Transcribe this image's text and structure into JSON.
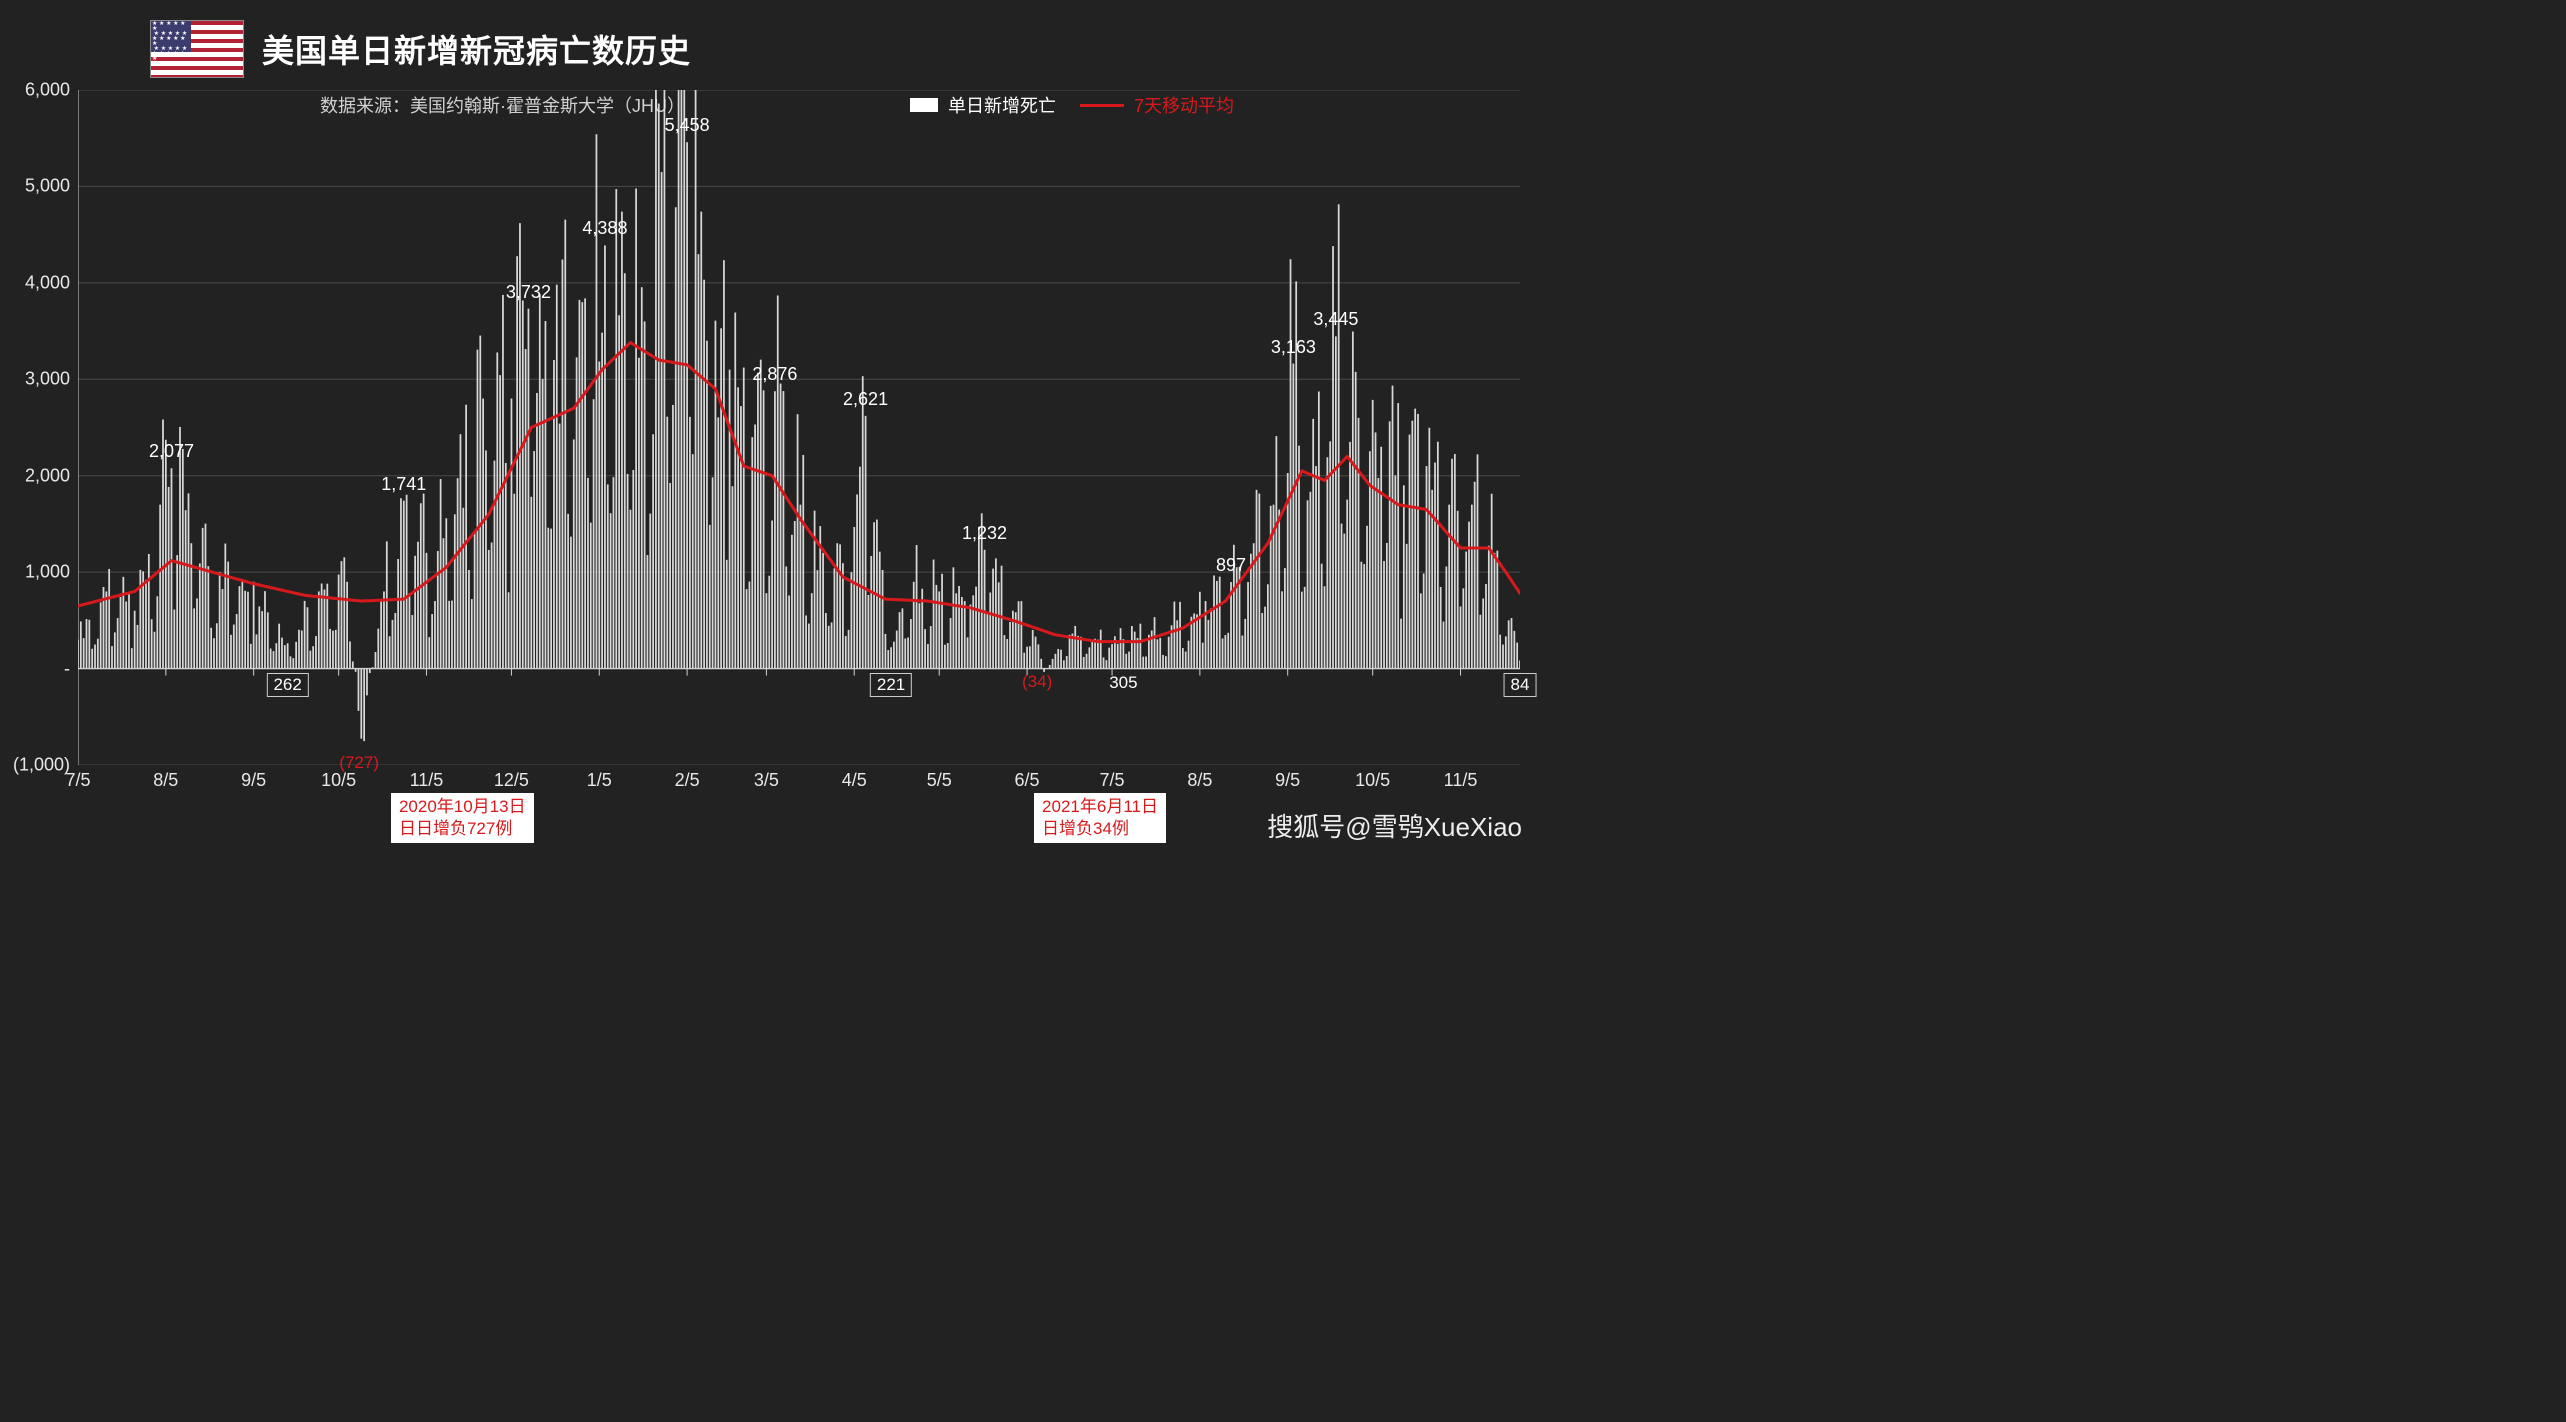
{
  "chart": {
    "type": "bar+line",
    "title": "美国单日新增新冠病亡数历史",
    "source_label": "数据来源：美国约翰斯·霍普金斯大学（JHU）",
    "legend": {
      "bar_label": "单日新增死亡",
      "line_label": "7天移动平均",
      "bar_color": "#ffffff",
      "line_color": "#d8191c"
    },
    "background_color": "#222222",
    "grid_color": "#5a5a5a",
    "axis_color": "#d0d0d0",
    "text_color": "#ffffff",
    "bar_color": "#e8e8e8",
    "line_color": "#d8191c",
    "line_width": 3,
    "ylim": [
      -1000,
      6000
    ],
    "yticks": [
      -1000,
      0,
      1000,
      2000,
      3000,
      4000,
      5000,
      6000
    ],
    "ytick_labels": [
      "(1,000)",
      "-",
      "1,000",
      "2,000",
      "3,000",
      "4,000",
      "5,000",
      "6,000"
    ],
    "n_days": 510,
    "xticks": [
      {
        "i": 0,
        "label": "7/5"
      },
      {
        "i": 31,
        "label": "8/5"
      },
      {
        "i": 62,
        "label": "9/5"
      },
      {
        "i": 92,
        "label": "10/5"
      },
      {
        "i": 123,
        "label": "11/5"
      },
      {
        "i": 153,
        "label": "12/5"
      },
      {
        "i": 184,
        "label": "1/5"
      },
      {
        "i": 215,
        "label": "2/5"
      },
      {
        "i": 243,
        "label": "3/5"
      },
      {
        "i": 274,
        "label": "4/5"
      },
      {
        "i": 304,
        "label": "5/5"
      },
      {
        "i": 335,
        "label": "6/5"
      },
      {
        "i": 365,
        "label": "7/5"
      },
      {
        "i": 396,
        "label": "8/5"
      },
      {
        "i": 427,
        "label": "9/5"
      },
      {
        "i": 457,
        "label": "10/5"
      },
      {
        "i": 488,
        "label": "11/5"
      }
    ],
    "bar_keypoints": [
      {
        "i": 0,
        "v": 300
      },
      {
        "i": 10,
        "v": 800
      },
      {
        "i": 20,
        "v": 600
      },
      {
        "i": 29,
        "v": 1700
      },
      {
        "i": 33,
        "v": 2077
      },
      {
        "i": 40,
        "v": 1300
      },
      {
        "i": 50,
        "v": 1000
      },
      {
        "i": 62,
        "v": 900
      },
      {
        "i": 74,
        "v": 262
      },
      {
        "i": 85,
        "v": 800
      },
      {
        "i": 95,
        "v": 900
      },
      {
        "i": 100,
        "v": -727
      },
      {
        "i": 108,
        "v": 800
      },
      {
        "i": 115,
        "v": 1741
      },
      {
        "i": 123,
        "v": 1200
      },
      {
        "i": 133,
        "v": 1600
      },
      {
        "i": 143,
        "v": 2800
      },
      {
        "i": 153,
        "v": 2800
      },
      {
        "i": 159,
        "v": 3732
      },
      {
        "i": 168,
        "v": 3200
      },
      {
        "i": 178,
        "v": 3800
      },
      {
        "i": 186,
        "v": 4388
      },
      {
        "i": 193,
        "v": 4100
      },
      {
        "i": 200,
        "v": 3600
      },
      {
        "i": 206,
        "v": 5150
      },
      {
        "i": 215,
        "v": 5458
      },
      {
        "i": 222,
        "v": 3400
      },
      {
        "i": 230,
        "v": 3100
      },
      {
        "i": 238,
        "v": 2400
      },
      {
        "i": 246,
        "v": 2876
      },
      {
        "i": 255,
        "v": 1700
      },
      {
        "i": 263,
        "v": 1200
      },
      {
        "i": 273,
        "v": 1000
      },
      {
        "i": 278,
        "v": 2621
      },
      {
        "i": 287,
        "v": 221
      },
      {
        "i": 295,
        "v": 900
      },
      {
        "i": 304,
        "v": 800
      },
      {
        "i": 313,
        "v": 700
      },
      {
        "i": 320,
        "v": 1232
      },
      {
        "i": 330,
        "v": 600
      },
      {
        "i": 337,
        "v": 400
      },
      {
        "i": 341,
        "v": -34
      },
      {
        "i": 350,
        "v": 350
      },
      {
        "i": 360,
        "v": 300
      },
      {
        "i": 369,
        "v": 305
      },
      {
        "i": 378,
        "v": 350
      },
      {
        "i": 388,
        "v": 500
      },
      {
        "i": 398,
        "v": 700
      },
      {
        "i": 407,
        "v": 897
      },
      {
        "i": 415,
        "v": 1300
      },
      {
        "i": 422,
        "v": 1700
      },
      {
        "i": 429,
        "v": 3163
      },
      {
        "i": 437,
        "v": 2100
      },
      {
        "i": 444,
        "v": 3445
      },
      {
        "i": 452,
        "v": 2600
      },
      {
        "i": 460,
        "v": 2300
      },
      {
        "i": 468,
        "v": 1900
      },
      {
        "i": 476,
        "v": 2100
      },
      {
        "i": 484,
        "v": 1700
      },
      {
        "i": 492,
        "v": 1700
      },
      {
        "i": 500,
        "v": 1200
      },
      {
        "i": 505,
        "v": 500
      },
      {
        "i": 509,
        "v": 84
      }
    ],
    "ma_keypoints": [
      {
        "i": 0,
        "v": 650
      },
      {
        "i": 20,
        "v": 800
      },
      {
        "i": 33,
        "v": 1120
      },
      {
        "i": 45,
        "v": 1020
      },
      {
        "i": 62,
        "v": 880
      },
      {
        "i": 80,
        "v": 760
      },
      {
        "i": 100,
        "v": 700
      },
      {
        "i": 115,
        "v": 720
      },
      {
        "i": 130,
        "v": 1050
      },
      {
        "i": 145,
        "v": 1600
      },
      {
        "i": 160,
        "v": 2500
      },
      {
        "i": 175,
        "v": 2700
      },
      {
        "i": 185,
        "v": 3100
      },
      {
        "i": 195,
        "v": 3380
      },
      {
        "i": 205,
        "v": 3200
      },
      {
        "i": 215,
        "v": 3150
      },
      {
        "i": 225,
        "v": 2900
      },
      {
        "i": 235,
        "v": 2100
      },
      {
        "i": 245,
        "v": 2000
      },
      {
        "i": 255,
        "v": 1550
      },
      {
        "i": 270,
        "v": 950
      },
      {
        "i": 285,
        "v": 720
      },
      {
        "i": 300,
        "v": 700
      },
      {
        "i": 315,
        "v": 630
      },
      {
        "i": 330,
        "v": 500
      },
      {
        "i": 345,
        "v": 350
      },
      {
        "i": 360,
        "v": 280
      },
      {
        "i": 375,
        "v": 280
      },
      {
        "i": 390,
        "v": 420
      },
      {
        "i": 405,
        "v": 700
      },
      {
        "i": 420,
        "v": 1300
      },
      {
        "i": 432,
        "v": 2050
      },
      {
        "i": 440,
        "v": 1950
      },
      {
        "i": 448,
        "v": 2200
      },
      {
        "i": 456,
        "v": 1900
      },
      {
        "i": 466,
        "v": 1700
      },
      {
        "i": 476,
        "v": 1650
      },
      {
        "i": 488,
        "v": 1250
      },
      {
        "i": 498,
        "v": 1250
      },
      {
        "i": 504,
        "v": 1000
      },
      {
        "i": 509,
        "v": 780
      }
    ],
    "peak_labels": [
      {
        "i": 33,
        "v": 2077,
        "text": "2,077"
      },
      {
        "i": 115,
        "v": 1741,
        "text": "1,741"
      },
      {
        "i": 159,
        "v": 3732,
        "text": "3,732"
      },
      {
        "i": 186,
        "v": 4388,
        "text": "4,388"
      },
      {
        "i": 215,
        "v": 5458,
        "text": "5,458"
      },
      {
        "i": 246,
        "v": 2876,
        "text": "2,876"
      },
      {
        "i": 278,
        "v": 2621,
        "text": "2,621"
      },
      {
        "i": 320,
        "v": 1232,
        "text": "1,232"
      },
      {
        "i": 407,
        "v": 897,
        "text": "897"
      },
      {
        "i": 429,
        "v": 3163,
        "text": "3,163"
      },
      {
        "i": 444,
        "v": 3445,
        "text": "3,445"
      }
    ],
    "low_labels": [
      {
        "i": 74,
        "text": "262",
        "boxed": true
      },
      {
        "i": 287,
        "text": "221",
        "boxed": true
      },
      {
        "i": 369,
        "text": "305",
        "boxed": false
      },
      {
        "i": 509,
        "text": "84",
        "boxed": true
      }
    ],
    "red_parens": [
      {
        "i": 100,
        "v": -880,
        "text": "(727)"
      },
      {
        "i": 341,
        "v": -40,
        "text": "(34)"
      }
    ],
    "callouts": [
      {
        "i": 114,
        "lines": [
          "2020年10月13日",
          "日日增负727例"
        ]
      },
      {
        "i": 341,
        "lines": [
          "2021年6月11日",
          "日增负34例"
        ]
      }
    ],
    "watermark": "搜狐号@雪鸮XueXiao"
  }
}
